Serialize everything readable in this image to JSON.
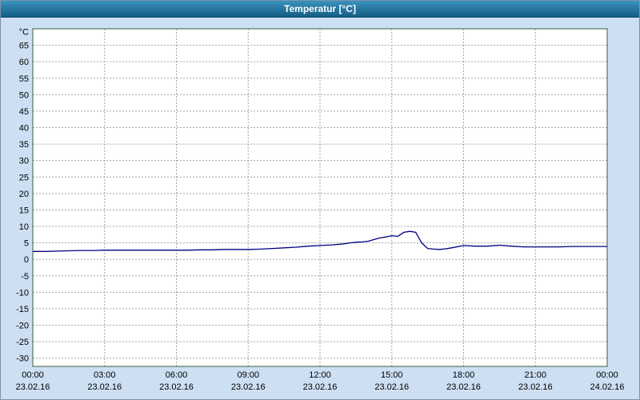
{
  "window": {
    "title": "Temperatur [°C]"
  },
  "colors": {
    "background": "#cddff2",
    "titlebar_top": "#3a93bd",
    "titlebar_bottom": "#135d85",
    "plot_background": "#ffffff",
    "grid": "#98a898",
    "plot_border": "#3c5c3c",
    "series_line": "#000080",
    "text": "#000000"
  },
  "chart_data": {
    "type": "line",
    "title": "Temperatur [°C]",
    "ylabel": "°C",
    "x_unit": "hours",
    "ylim": [
      -32.5,
      70
    ],
    "grid": true,
    "legend": "none",
    "yticks": [
      65,
      60,
      55,
      50,
      45,
      40,
      35,
      30,
      25,
      20,
      15,
      10,
      5,
      0,
      -5,
      -10,
      -15,
      -20,
      -25,
      -30
    ],
    "xticks": [
      {
        "hour": 0,
        "time": "00:00",
        "date": "23.02.16"
      },
      {
        "hour": 3,
        "time": "03:00",
        "date": "23.02.16"
      },
      {
        "hour": 6,
        "time": "06:00",
        "date": "23.02.16"
      },
      {
        "hour": 9,
        "time": "09:00",
        "date": "23.02.16"
      },
      {
        "hour": 12,
        "time": "12:00",
        "date": "23.02.16"
      },
      {
        "hour": 15,
        "time": "15:00",
        "date": "23.02.16"
      },
      {
        "hour": 18,
        "time": "18:00",
        "date": "23.02.16"
      },
      {
        "hour": 21,
        "time": "21:00",
        "date": "23.02.16"
      },
      {
        "hour": 24,
        "time": "00:00",
        "date": "24.02.16"
      }
    ],
    "series": [
      {
        "name": "Temperatur",
        "color": "#000080",
        "x": [
          0,
          0.5,
          1,
          1.5,
          2,
          2.5,
          3,
          3.5,
          4,
          4.5,
          5,
          5.5,
          6,
          6.5,
          7,
          7.5,
          8,
          8.5,
          9,
          9.5,
          10,
          10.5,
          11,
          11.5,
          12,
          12.5,
          13,
          13.25,
          13.5,
          13.75,
          14,
          14.25,
          14.5,
          14.75,
          15,
          15.25,
          15.5,
          15.75,
          16,
          16.25,
          16.5,
          16.75,
          17,
          17.25,
          17.5,
          18,
          18.5,
          19,
          19.5,
          20,
          20.5,
          21,
          21.5,
          22,
          22.5,
          23,
          23.5,
          24
        ],
        "values": [
          2.4,
          2.4,
          2.5,
          2.6,
          2.7,
          2.7,
          2.8,
          2.8,
          2.8,
          2.8,
          2.8,
          2.8,
          2.8,
          2.8,
          2.9,
          2.9,
          3.0,
          3.0,
          3.0,
          3.1,
          3.3,
          3.5,
          3.7,
          4.0,
          4.2,
          4.4,
          4.7,
          5.0,
          5.2,
          5.3,
          5.5,
          6.0,
          6.5,
          6.8,
          7.2,
          7.0,
          8.2,
          8.5,
          8.2,
          5.0,
          3.3,
          3.1,
          3.0,
          3.2,
          3.5,
          4.2,
          4.0,
          4.0,
          4.3,
          4.0,
          3.8,
          3.8,
          3.8,
          3.8,
          3.9,
          3.9,
          3.9,
          3.9
        ]
      }
    ]
  }
}
